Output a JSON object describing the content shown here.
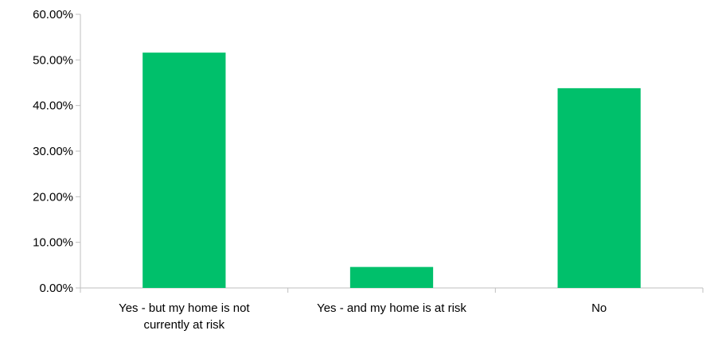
{
  "chart_data": {
    "type": "bar",
    "categories": [
      [
        "Yes - but my home is not",
        "currently at risk"
      ],
      [
        "Yes - and my home is at risk"
      ],
      [
        "No"
      ]
    ],
    "values": [
      51.6,
      4.6,
      43.8
    ],
    "ylim": [
      0,
      60
    ],
    "yticks": [
      "0.00%",
      "10.00%",
      "20.00%",
      "30.00%",
      "40.00%",
      "50.00%",
      "60.00%"
    ],
    "bar_color": "#00c06b",
    "grid": false,
    "legend": "none"
  }
}
